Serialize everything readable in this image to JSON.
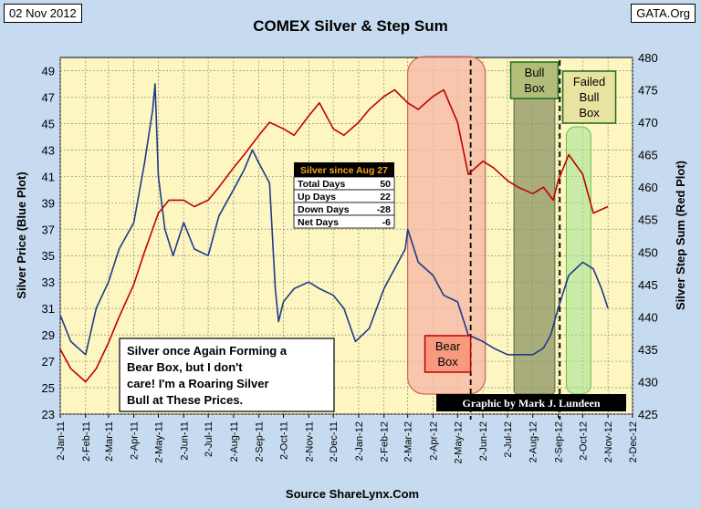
{
  "header": {
    "date": "02 Nov 2012",
    "title": "COMEX Silver & Step Sum",
    "site": "GATA.Org",
    "source": "Source ShareLynx.Com"
  },
  "chart_data": {
    "type": "line",
    "title": "COMEX Silver & Step Sum",
    "ylabel_left": "Silver Price (Blue Plot)",
    "ylabel_right": "Silver Step Sum (Red Plot)",
    "ylim_left": [
      23,
      50
    ],
    "ylim_right": [
      425,
      480
    ],
    "left_ticks": [
      23,
      25,
      27,
      29,
      31,
      33,
      35,
      37,
      39,
      41,
      43,
      45,
      47,
      49
    ],
    "right_ticks": [
      425,
      430,
      435,
      440,
      445,
      450,
      455,
      460,
      465,
      470,
      475,
      480
    ],
    "x_ticks": [
      "2-Jan-11",
      "2-Feb-11",
      "2-Mar-11",
      "2-Apr-11",
      "2-May-11",
      "2-Jun-11",
      "2-Jul-11",
      "2-Aug-11",
      "2-Sep-11",
      "2-Oct-11",
      "2-Nov-11",
      "2-Dec-11",
      "2-Jan-12",
      "2-Feb-12",
      "2-Mar-12",
      "2-Apr-12",
      "2-May-12",
      "2-Jun-12",
      "2-Jul-12",
      "2-Aug-12",
      "2-Sep-12",
      "2-Oct-12",
      "2-Nov-12",
      "2-Dec-12"
    ],
    "series": [
      {
        "name": "Silver Price",
        "axis": "left",
        "color": "#1f3a8a",
        "x": [
          "2-Jan-11",
          "15-Jan-11",
          "2-Feb-11",
          "15-Feb-11",
          "2-Mar-11",
          "15-Mar-11",
          "2-Apr-11",
          "15-Apr-11",
          "25-Apr-11",
          "28-Apr-11",
          "2-May-11",
          "10-May-11",
          "20-May-11",
          "2-Jun-11",
          "15-Jun-11",
          "2-Jul-11",
          "15-Jul-11",
          "2-Aug-11",
          "15-Aug-11",
          "25-Aug-11",
          "2-Sep-11",
          "15-Sep-11",
          "22-Sep-11",
          "26-Sep-11",
          "2-Oct-11",
          "15-Oct-11",
          "2-Nov-11",
          "15-Nov-11",
          "2-Dec-11",
          "15-Dec-11",
          "29-Dec-11",
          "15-Jan-12",
          "2-Feb-12",
          "15-Feb-12",
          "28-Feb-12",
          "2-Mar-12",
          "15-Mar-12",
          "2-Apr-12",
          "15-Apr-12",
          "2-May-12",
          "15-May-12",
          "2-Jun-12",
          "15-Jun-12",
          "2-Jul-12",
          "15-Jul-12",
          "2-Aug-12",
          "15-Aug-12",
          "24-Aug-12",
          "2-Sep-12",
          "15-Sep-12",
          "2-Oct-12",
          "15-Oct-12",
          "25-Oct-12",
          "2-Nov-12"
        ],
        "y": [
          30.5,
          28.5,
          27.5,
          31,
          33,
          35.5,
          37.5,
          42,
          46,
          48,
          41,
          37,
          35,
          37.5,
          35.5,
          35,
          38,
          40,
          41.5,
          43,
          42,
          40.5,
          32.5,
          30,
          31.5,
          32.5,
          33,
          32.5,
          32,
          31,
          28.5,
          29.5,
          32.5,
          34,
          35.5,
          37,
          34.5,
          33.5,
          32,
          31.5,
          29,
          28.5,
          28,
          27.5,
          27.5,
          27.5,
          28,
          29,
          31,
          33.5,
          34.5,
          34,
          32.5,
          31
        ]
      },
      {
        "name": "Step Sum",
        "axis": "right",
        "color": "#c00000",
        "x": [
          "2-Jan-11",
          "15-Jan-11",
          "2-Feb-11",
          "15-Feb-11",
          "2-Mar-11",
          "15-Mar-11",
          "2-Apr-11",
          "15-Apr-11",
          "2-May-11",
          "15-May-11",
          "2-Jun-11",
          "15-Jun-11",
          "2-Jul-11",
          "15-Jul-11",
          "2-Aug-11",
          "15-Aug-11",
          "2-Sep-11",
          "15-Sep-11",
          "2-Oct-11",
          "15-Oct-11",
          "2-Nov-11",
          "15-Nov-11",
          "2-Dec-11",
          "15-Dec-11",
          "2-Jan-12",
          "15-Jan-12",
          "2-Feb-12",
          "15-Feb-12",
          "2-Mar-12",
          "15-Mar-12",
          "2-Apr-12",
          "15-Apr-12",
          "2-May-12",
          "15-May-12",
          "2-Jun-12",
          "15-Jun-12",
          "2-Jul-12",
          "15-Jul-12",
          "2-Aug-12",
          "15-Aug-12",
          "27-Aug-12",
          "2-Sep-12",
          "15-Sep-12",
          "2-Oct-12",
          "15-Oct-12",
          "2-Nov-12"
        ],
        "y": [
          435,
          432,
          430,
          432,
          436,
          440,
          445,
          450,
          456,
          458,
          458,
          457,
          458,
          460,
          463,
          465,
          468,
          470,
          469,
          468,
          471,
          473,
          469,
          468,
          470,
          472,
          474,
          475,
          473,
          472,
          474,
          475,
          470,
          462,
          464,
          463,
          461,
          460,
          459,
          460,
          458,
          461,
          465,
          462,
          456,
          457
        ]
      }
    ],
    "boxes": [
      {
        "label": "Bear Box",
        "color": "#f4b6a6"
      },
      {
        "label": "Bull Box",
        "color": "#8c9466"
      },
      {
        "label": "Failed Bull Box",
        "color": "#9fe28f"
      }
    ],
    "stats_table": {
      "title": "Silver since Aug 27",
      "rows": [
        {
          "label": "Total Days",
          "value": "50"
        },
        {
          "label": "Up Days",
          "value": "22"
        },
        {
          "label": "Down Days",
          "value": "-28"
        },
        {
          "label": "Net Days",
          "value": "-6"
        }
      ]
    },
    "annotation": "Silver once Again Forming a Bear Box, but I don't care!  I'm a Roaring Silver Bull at These Prices.",
    "credit": "Graphic by Mark J. Lundeen"
  }
}
